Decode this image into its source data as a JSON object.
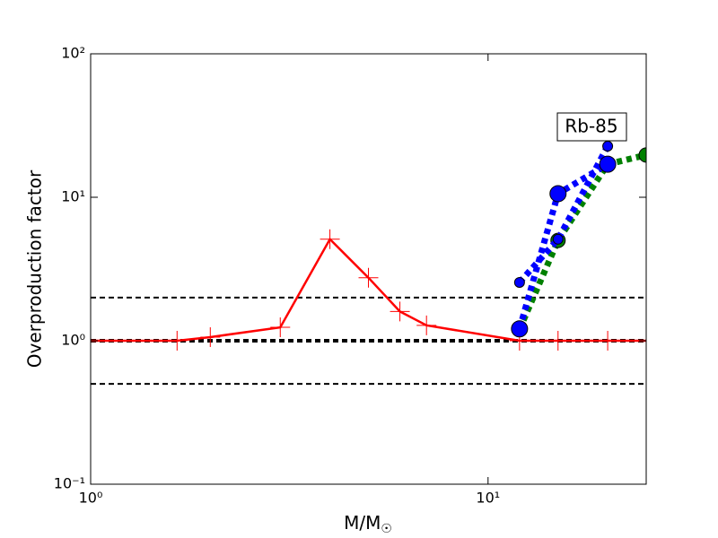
{
  "chart_data": {
    "type": "line",
    "annotation": "Rb-85",
    "xlabel": "M/M☉",
    "ylabel": "Overproduction factor",
    "xscale": "log",
    "yscale": "log",
    "xlim": [
      1,
      25
    ],
    "ylim": [
      0.1,
      100
    ],
    "xticks": [
      {
        "value": 1,
        "label": "10⁰"
      },
      {
        "value": 10,
        "label": "10¹"
      }
    ],
    "yticks": [
      {
        "value": 0.1,
        "label": "10⁻¹"
      },
      {
        "value": 1,
        "label": "10⁰"
      },
      {
        "value": 10,
        "label": "10¹"
      },
      {
        "value": 100,
        "label": "10²"
      }
    ],
    "hlines": [
      0.5,
      1,
      2
    ],
    "series": [
      {
        "color": "#ff0000",
        "marker": "+",
        "linestyle": "solid",
        "x": [
          1,
          1.65,
          2,
          3,
          4,
          5,
          6,
          7,
          12,
          15,
          20,
          25
        ],
        "values": [
          1,
          1,
          1.06,
          1.24,
          5.1,
          2.75,
          1.6,
          1.28,
          1,
          1,
          1,
          1
        ]
      },
      {
        "color": "#008000",
        "marker": "o",
        "linestyle": "dotted",
        "x": [
          12,
          15,
          20,
          25
        ],
        "values": [
          1.2,
          5,
          17,
          19.7
        ]
      },
      {
        "color": "#0000ff",
        "marker": "o",
        "linestyle": "dotted",
        "x": [
          12,
          15,
          20
        ],
        "values": [
          2.55,
          5.1,
          22.7
        ]
      },
      {
        "color": "#0000ff",
        "marker": "O",
        "linestyle": "dotted",
        "x": [
          12,
          15,
          20
        ],
        "values": [
          1.21,
          10.6,
          17
        ]
      }
    ]
  }
}
